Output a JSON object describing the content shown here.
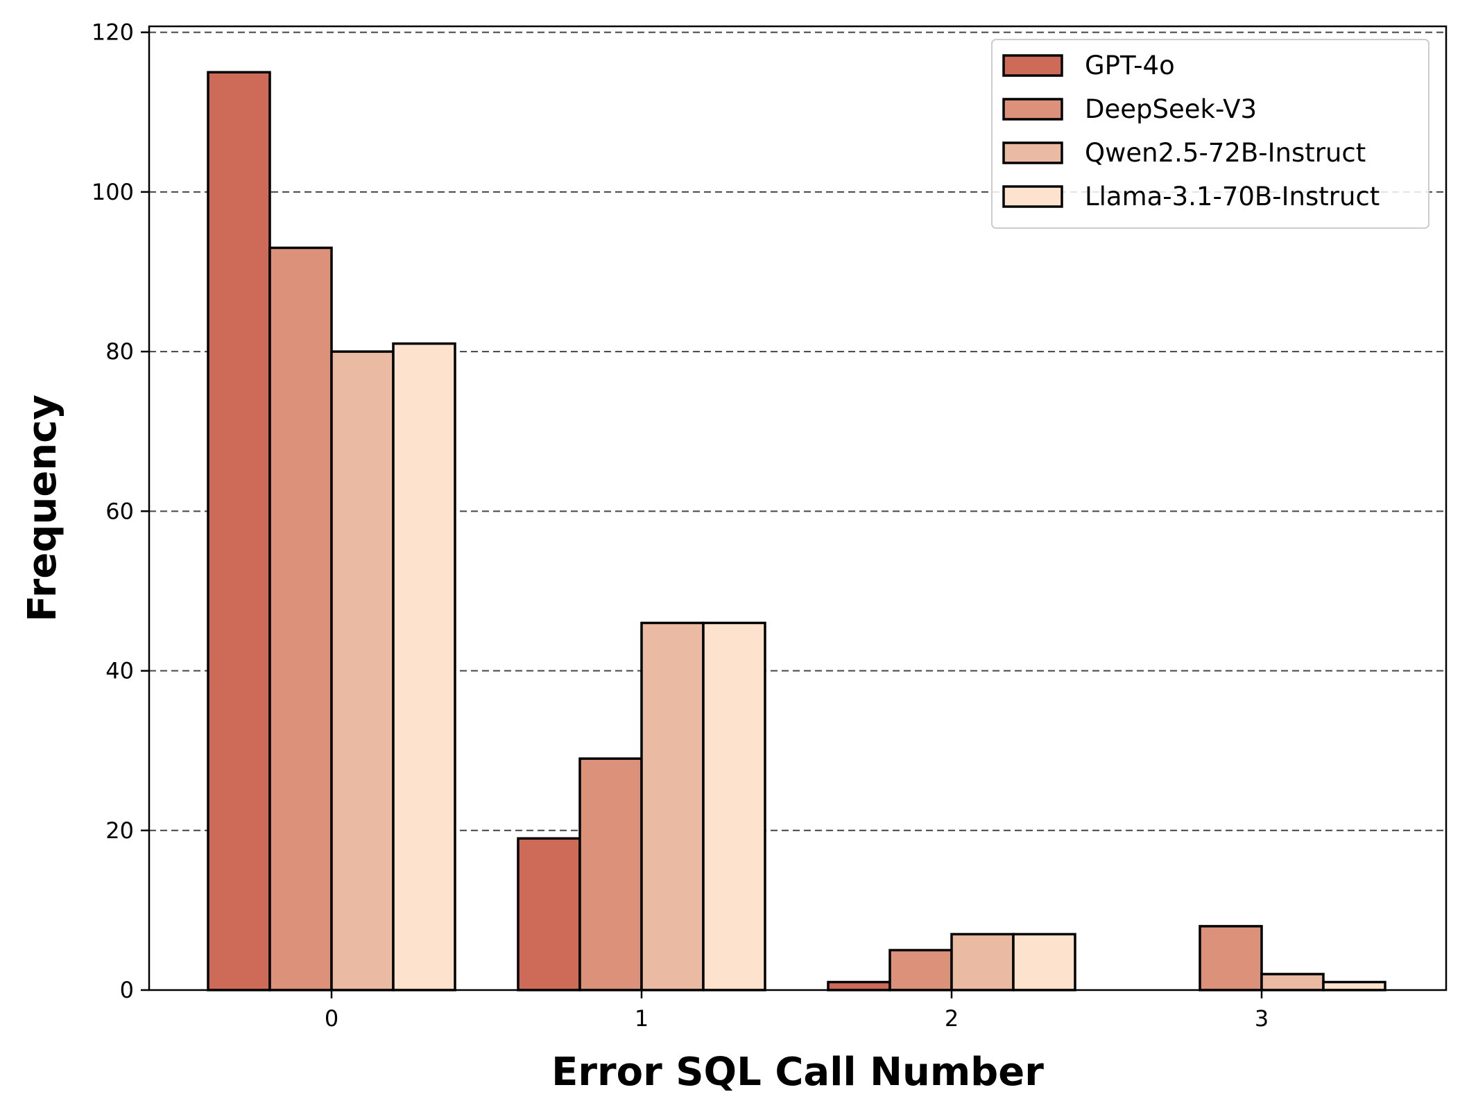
{
  "chart_data": {
    "type": "bar",
    "title": "",
    "xlabel": "Error SQL Call Number",
    "ylabel": "Frequency",
    "categories": [
      "0",
      "1",
      "2",
      "3"
    ],
    "series": [
      {
        "name": "GPT-4o",
        "values": [
          115,
          19,
          1,
          0
        ],
        "color": "#cd6b58"
      },
      {
        "name": "DeepSeek-V3",
        "values": [
          93,
          29,
          5,
          8
        ],
        "color": "#dc917a"
      },
      {
        "name": "Qwen2.5-72B-Instruct",
        "values": [
          80,
          46,
          7,
          2
        ],
        "color": "#eabba2"
      },
      {
        "name": "Llama-3.1-70B-Instruct",
        "values": [
          81,
          46,
          7,
          1
        ],
        "color": "#fde3cd"
      }
    ],
    "ylim": [
      0,
      120.75
    ],
    "yticks": [
      0,
      20,
      40,
      60,
      80,
      100,
      120
    ],
    "grid": "horizontal dashed",
    "legend_position": "top-right"
  }
}
